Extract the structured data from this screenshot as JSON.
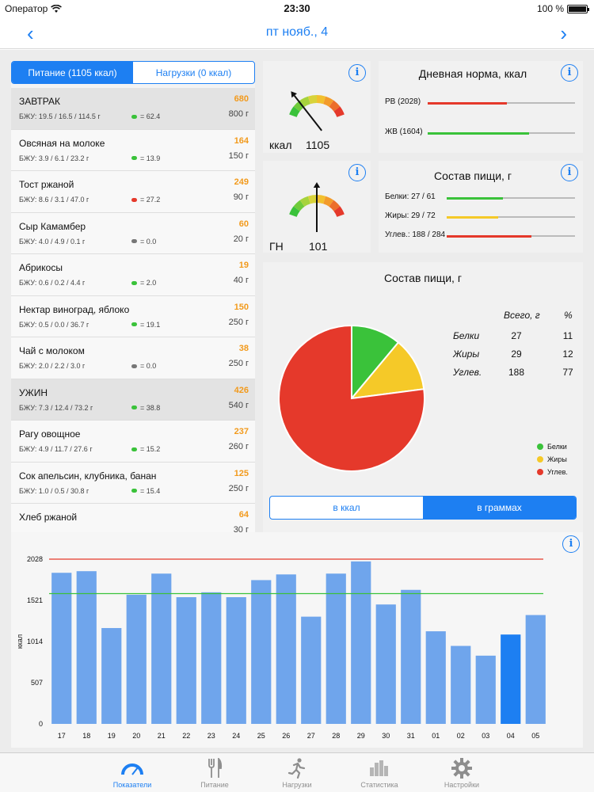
{
  "status": {
    "carrier": "Оператор",
    "time": "23:30",
    "battery": "100 %"
  },
  "nav": {
    "title": "пт нояб., 4",
    "prev": "‹",
    "next": "›"
  },
  "segment": {
    "food": "Питание  (1105 ккал)",
    "load": "Нагрузки  (0 ккал)"
  },
  "foods": [
    {
      "name": "ЗАВТРАК",
      "bju": "БЖУ: 19.5 / 16.5 / 114.5 г",
      "gn": "= 62.4",
      "gn_color": "#3ac23a",
      "kcal": "680",
      "weight": "800 г",
      "meal": true
    },
    {
      "name": "Овсяная на молоке",
      "bju": "БЖУ: 3.9 / 6.1 / 23.2 г",
      "gn": "= 13.9",
      "gn_color": "#3ac23a",
      "kcal": "164",
      "weight": "150 г",
      "meal": false
    },
    {
      "name": "Тост ржаной",
      "bju": "БЖУ: 8.6 / 3.1 / 47.0 г",
      "gn": "= 27.2",
      "gn_color": "#e5392b",
      "kcal": "249",
      "weight": "90 г",
      "meal": false
    },
    {
      "name": "Сыр Камамбер",
      "bju": "БЖУ: 4.0 / 4.9 / 0.1 г",
      "gn": "= 0.0",
      "gn_color": "#777777",
      "kcal": "60",
      "weight": "20 г",
      "meal": false
    },
    {
      "name": "Абрикосы",
      "bju": "БЖУ: 0.6 / 0.2 / 4.4 г",
      "gn": "= 2.0",
      "gn_color": "#3ac23a",
      "kcal": "19",
      "weight": "40 г",
      "meal": false
    },
    {
      "name": "Нектар виноград, яблоко",
      "bju": "БЖУ: 0.5 / 0.0 / 36.7 г",
      "gn": "= 19.1",
      "gn_color": "#3ac23a",
      "kcal": "150",
      "weight": "250 г",
      "meal": false
    },
    {
      "name": "Чай с молоком",
      "bju": "БЖУ: 2.0 / 2.2 / 3.0 г",
      "gn": "= 0.0",
      "gn_color": "#777777",
      "kcal": "38",
      "weight": "250 г",
      "meal": false
    },
    {
      "name": "УЖИН",
      "bju": "БЖУ: 7.3 / 12.4 / 73.2 г",
      "gn": "= 38.8",
      "gn_color": "#3ac23a",
      "kcal": "426",
      "weight": "540 г",
      "meal": true
    },
    {
      "name": "Рагу овощное",
      "bju": "БЖУ: 4.9 / 11.7 / 27.6 г",
      "gn": "= 15.2",
      "gn_color": "#3ac23a",
      "kcal": "237",
      "weight": "260 г",
      "meal": false
    },
    {
      "name": "Сок апельсин, клубника, банан",
      "bju": "БЖУ: 1.0 / 0.5 / 30.8 г",
      "gn": "= 15.4",
      "gn_color": "#3ac23a",
      "kcal": "125",
      "weight": "250 г",
      "meal": false
    },
    {
      "name": "Хлеб ржаной",
      "bju": "",
      "gn": "",
      "gn_color": "",
      "kcal": "64",
      "weight": "30 г",
      "meal": false
    }
  ],
  "gauge_kcal": {
    "label": "ккал",
    "value": "1105"
  },
  "gauge_gn": {
    "label": "ГН",
    "value": "101"
  },
  "daily": {
    "title": "Дневная норма, ккал",
    "rows": [
      {
        "label": "РВ (2028)",
        "fraction": 0.54,
        "color": "#e5392b"
      },
      {
        "label": "ЖВ (1604)",
        "fraction": 0.69,
        "color": "#3ac23a"
      }
    ]
  },
  "composition": {
    "title": "Состав пищи, г",
    "rows": [
      {
        "label": "Белки: 27 / 61",
        "fraction": 0.44,
        "color": "#3ac23a"
      },
      {
        "label": "Жиры: 29 / 72",
        "fraction": 0.4,
        "color": "#f5c928"
      },
      {
        "label": "Углев.: 188 / 284",
        "fraction": 0.66,
        "color": "#e5392b"
      }
    ]
  },
  "pie_card": {
    "title": "Состав пищи, г",
    "col_total": "Всего, г",
    "col_pct": "%",
    "rows": [
      {
        "name": "Белки",
        "total": "27",
        "pct": "11"
      },
      {
        "name": "Жиры",
        "total": "29",
        "pct": "12"
      },
      {
        "name": "Углев.",
        "total": "188",
        "pct": "77"
      }
    ],
    "legend": [
      {
        "name": "Белки",
        "color": "#3ac23a"
      },
      {
        "name": "Жиры",
        "color": "#f5c928"
      },
      {
        "name": "Углев.",
        "color": "#e5392b"
      }
    ],
    "toggle": {
      "kcal": "в ккал",
      "grams": "в граммах"
    }
  },
  "chart_data": [
    {
      "type": "pie",
      "categories": [
        "Белки",
        "Жиры",
        "Углев."
      ],
      "values": [
        27,
        29,
        188
      ],
      "colors": [
        "#3ac23a",
        "#f5c928",
        "#e5392b"
      ]
    },
    {
      "type": "bar",
      "ylabel": "ккал",
      "categories": [
        "17",
        "18",
        "19",
        "20",
        "21",
        "22",
        "23",
        "24",
        "25",
        "26",
        "27",
        "28",
        "29",
        "30",
        "31",
        "01",
        "02",
        "03",
        "04",
        "05"
      ],
      "values": [
        1860,
        1880,
        1180,
        1590,
        1850,
        1560,
        1620,
        1560,
        1770,
        1840,
        1320,
        1850,
        2000,
        1470,
        1650,
        1140,
        960,
        840,
        1100,
        1340
      ],
      "highlight_index": 18,
      "ylim": [
        0,
        2028
      ],
      "yticks": [
        "0",
        "507",
        "1014",
        "1521",
        "2028"
      ],
      "reference_lines": [
        {
          "value": 2028,
          "color": "#e5392b"
        },
        {
          "value": 1604,
          "color": "#3ac23a"
        }
      ],
      "bar_color": "#6fa5ec",
      "highlight_color": "#1d7ff2"
    }
  ],
  "tabs": [
    {
      "label": "Показатели",
      "active": true
    },
    {
      "label": "Питание",
      "active": false
    },
    {
      "label": "Нагрузки",
      "active": false
    },
    {
      "label": "Статистика",
      "active": false
    },
    {
      "label": "Настройки",
      "active": false
    }
  ]
}
